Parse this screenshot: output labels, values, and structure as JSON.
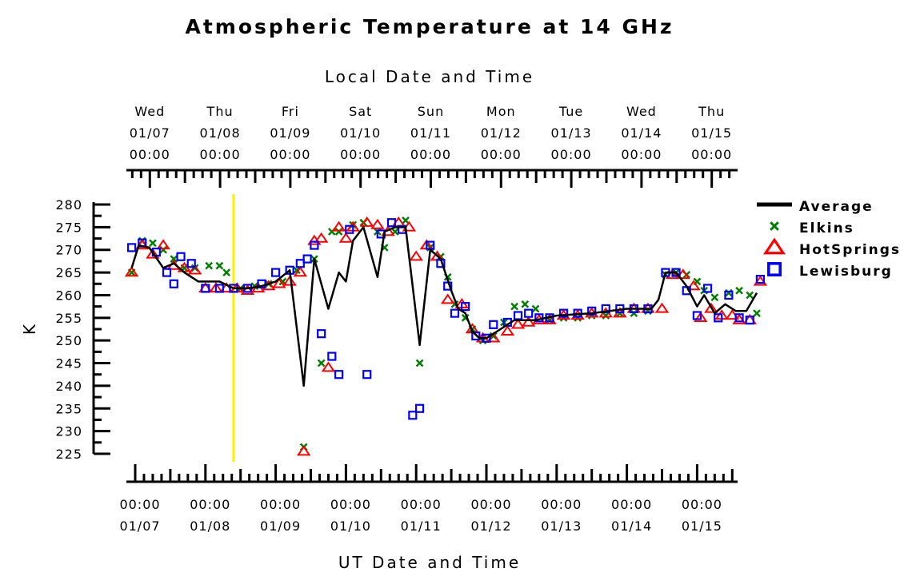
{
  "chart_data": {
    "type": "scatter",
    "title": "Atmospheric Temperature at 14 GHz",
    "top_axis_label": "Local Date and Time",
    "xlabel": "UT Date and Time",
    "ylabel": "K",
    "ylim": [
      225,
      280
    ],
    "yticks": [
      "280",
      "275",
      "270",
      "265",
      "260",
      "255",
      "250",
      "245",
      "240",
      "235",
      "230",
      "225"
    ],
    "top_ticks": [
      {
        "day": "Wed",
        "date": "01/07",
        "time": "00:00"
      },
      {
        "day": "Thu",
        "date": "01/08",
        "time": "00:00"
      },
      {
        "day": "Fri",
        "date": "01/09",
        "time": "00:00"
      },
      {
        "day": "Sat",
        "date": "01/10",
        "time": "00:00"
      },
      {
        "day": "Sun",
        "date": "01/11",
        "time": "00:00"
      },
      {
        "day": "Mon",
        "date": "01/12",
        "time": "00:00"
      },
      {
        "day": "Tue",
        "date": "01/13",
        "time": "00:00"
      },
      {
        "day": "Wed",
        "date": "01/14",
        "time": "00:00"
      },
      {
        "day": "Thu",
        "date": "01/15",
        "time": "00:00"
      }
    ],
    "bottom_ticks": [
      {
        "time": "00:00",
        "date": "01/07"
      },
      {
        "time": "00:00",
        "date": "01/08"
      },
      {
        "time": "00:00",
        "date": "01/09"
      },
      {
        "time": "00:00",
        "date": "01/10"
      },
      {
        "time": "00:00",
        "date": "01/11"
      },
      {
        "time": "00:00",
        "date": "01/12"
      },
      {
        "time": "00:00",
        "date": "01/13"
      },
      {
        "time": "00:00",
        "date": "01/14"
      },
      {
        "time": "00:00",
        "date": "01/15"
      }
    ],
    "x_unit": "days since 01/07 00:00 UT",
    "vline": {
      "x": 1.4,
      "color": "#ffee00"
    },
    "legend_position": "right",
    "series": [
      {
        "name": "Average",
        "marker": "line",
        "color": "#000000",
        "points": [
          [
            -0.05,
            266
          ],
          [
            0.05,
            271
          ],
          [
            0.2,
            270.5
          ],
          [
            0.4,
            266
          ],
          [
            0.55,
            267
          ],
          [
            0.7,
            265
          ],
          [
            0.9,
            263
          ],
          [
            1.2,
            263
          ],
          [
            1.4,
            261.5
          ],
          [
            1.6,
            261.5
          ],
          [
            1.8,
            262
          ],
          [
            2.0,
            263
          ],
          [
            2.2,
            265.5
          ],
          [
            2.4,
            240
          ],
          [
            2.55,
            268
          ],
          [
            2.75,
            257
          ],
          [
            2.9,
            265
          ],
          [
            3.0,
            263
          ],
          [
            3.1,
            272
          ],
          [
            3.25,
            275
          ],
          [
            3.45,
            264
          ],
          [
            3.55,
            274
          ],
          [
            3.7,
            275
          ],
          [
            3.85,
            275
          ],
          [
            4.05,
            249
          ],
          [
            4.2,
            270
          ],
          [
            4.35,
            268
          ],
          [
            4.5,
            261
          ],
          [
            4.6,
            257
          ],
          [
            4.7,
            256
          ],
          [
            4.8,
            252
          ],
          [
            4.9,
            250.5
          ],
          [
            5.0,
            250.5
          ],
          [
            5.2,
            252.5
          ],
          [
            5.4,
            254.5
          ],
          [
            5.7,
            254.5
          ],
          [
            6.0,
            255.5
          ],
          [
            6.5,
            256
          ],
          [
            7.0,
            257
          ],
          [
            7.35,
            257
          ],
          [
            7.45,
            259
          ],
          [
            7.55,
            265
          ],
          [
            7.7,
            265
          ],
          [
            7.85,
            262
          ],
          [
            8.0,
            257.5
          ],
          [
            8.1,
            260
          ],
          [
            8.25,
            256
          ],
          [
            8.4,
            258
          ],
          [
            8.55,
            256.5
          ],
          [
            8.7,
            256.5
          ],
          [
            8.85,
            260.5
          ]
        ]
      },
      {
        "name": "Elkins",
        "marker": "x",
        "color": "#008000",
        "points": [
          [
            -0.05,
            265
          ],
          [
            0.1,
            272
          ],
          [
            0.25,
            271.5
          ],
          [
            0.4,
            270
          ],
          [
            0.55,
            268
          ],
          [
            0.7,
            266
          ],
          [
            0.85,
            266
          ],
          [
            1.05,
            266.5
          ],
          [
            1.2,
            266.5
          ],
          [
            1.3,
            265
          ],
          [
            1.5,
            261.5
          ],
          [
            1.7,
            262
          ],
          [
            1.9,
            262.5
          ],
          [
            2.1,
            263
          ],
          [
            2.3,
            265.5
          ],
          [
            2.4,
            226.5
          ],
          [
            2.55,
            268
          ],
          [
            2.65,
            245
          ],
          [
            2.8,
            274
          ],
          [
            2.9,
            274
          ],
          [
            3.1,
            275.5
          ],
          [
            3.25,
            276
          ],
          [
            3.45,
            274
          ],
          [
            3.55,
            270.5
          ],
          [
            3.7,
            274
          ],
          [
            3.85,
            276.5
          ],
          [
            4.05,
            245
          ],
          [
            4.2,
            270.5
          ],
          [
            4.35,
            268.5
          ],
          [
            4.45,
            264
          ],
          [
            4.55,
            258
          ],
          [
            4.7,
            255
          ],
          [
            4.8,
            252.5
          ],
          [
            4.95,
            250
          ],
          [
            5.1,
            251
          ],
          [
            5.25,
            254
          ],
          [
            5.4,
            257.5
          ],
          [
            5.55,
            258
          ],
          [
            5.7,
            257
          ],
          [
            5.9,
            254.5
          ],
          [
            6.1,
            255
          ],
          [
            6.3,
            255
          ],
          [
            6.5,
            255.5
          ],
          [
            6.7,
            255.5
          ],
          [
            6.9,
            256
          ],
          [
            7.1,
            256
          ],
          [
            7.3,
            256.5
          ],
          [
            7.55,
            264.5
          ],
          [
            7.7,
            265
          ],
          [
            7.85,
            264.5
          ],
          [
            8.0,
            263
          ],
          [
            8.1,
            261
          ],
          [
            8.25,
            259.5
          ],
          [
            8.45,
            260.5
          ],
          [
            8.6,
            261
          ],
          [
            8.75,
            260
          ],
          [
            8.85,
            256
          ]
        ]
      },
      {
        "name": "HotSprings",
        "marker": "triangle",
        "color": "#ff0000",
        "points": [
          [
            -0.05,
            265
          ],
          [
            0.1,
            271
          ],
          [
            0.25,
            269
          ],
          [
            0.4,
            271
          ],
          [
            0.55,
            266.5
          ],
          [
            0.7,
            266
          ],
          [
            0.85,
            265.5
          ],
          [
            1.0,
            261.5
          ],
          [
            1.15,
            261.5
          ],
          [
            1.3,
            261.5
          ],
          [
            1.45,
            261.5
          ],
          [
            1.6,
            261
          ],
          [
            1.75,
            261.5
          ],
          [
            1.9,
            262
          ],
          [
            2.05,
            262.5
          ],
          [
            2.2,
            263
          ],
          [
            2.35,
            265
          ],
          [
            2.4,
            225.5
          ],
          [
            2.55,
            272
          ],
          [
            2.65,
            272.5
          ],
          [
            2.75,
            244
          ],
          [
            2.9,
            275
          ],
          [
            3.0,
            272.5
          ],
          [
            3.1,
            275
          ],
          [
            3.3,
            276
          ],
          [
            3.45,
            275.5
          ],
          [
            3.6,
            274
          ],
          [
            3.75,
            276
          ],
          [
            3.9,
            275
          ],
          [
            4.0,
            268.5
          ],
          [
            4.15,
            271
          ],
          [
            4.3,
            268.5
          ],
          [
            4.45,
            259
          ],
          [
            4.65,
            258
          ],
          [
            4.8,
            252.5
          ],
          [
            4.95,
            250.5
          ],
          [
            5.1,
            250.5
          ],
          [
            5.3,
            252
          ],
          [
            5.45,
            253.5
          ],
          [
            5.6,
            254
          ],
          [
            5.75,
            254.5
          ],
          [
            5.9,
            254.5
          ],
          [
            6.1,
            255.5
          ],
          [
            6.3,
            255.5
          ],
          [
            6.5,
            256
          ],
          [
            6.7,
            256
          ],
          [
            6.9,
            256
          ],
          [
            7.1,
            257
          ],
          [
            7.3,
            257
          ],
          [
            7.5,
            257
          ],
          [
            7.65,
            264.5
          ],
          [
            7.8,
            264.5
          ],
          [
            7.95,
            262
          ],
          [
            8.05,
            255
          ],
          [
            8.2,
            257
          ],
          [
            8.35,
            255.5
          ],
          [
            8.5,
            255.5
          ],
          [
            8.6,
            254.5
          ],
          [
            8.75,
            254.5
          ],
          [
            8.9,
            263
          ]
        ]
      },
      {
        "name": "Lewisburg",
        "marker": "square",
        "color": "#0000ff",
        "points": [
          [
            -0.05,
            270.5
          ],
          [
            0.1,
            271.5
          ],
          [
            0.3,
            269.5
          ],
          [
            0.45,
            265
          ],
          [
            0.55,
            262.5
          ],
          [
            0.65,
            268.5
          ],
          [
            0.8,
            267
          ],
          [
            1.0,
            261.5
          ],
          [
            1.2,
            261.5
          ],
          [
            1.4,
            261.5
          ],
          [
            1.6,
            261.5
          ],
          [
            1.8,
            262.5
          ],
          [
            2.0,
            265
          ],
          [
            2.2,
            265.5
          ],
          [
            2.35,
            267
          ],
          [
            2.45,
            268
          ],
          [
            2.55,
            271
          ],
          [
            2.65,
            251.5
          ],
          [
            2.8,
            246.5
          ],
          [
            2.9,
            242.5
          ],
          [
            3.05,
            274.5
          ],
          [
            3.3,
            242.5
          ],
          [
            3.5,
            273.5
          ],
          [
            3.65,
            276
          ],
          [
            3.8,
            274.5
          ],
          [
            3.95,
            233.5
          ],
          [
            4.05,
            235
          ],
          [
            4.2,
            271
          ],
          [
            4.35,
            267
          ],
          [
            4.45,
            262
          ],
          [
            4.55,
            256
          ],
          [
            4.7,
            257.5
          ],
          [
            4.85,
            251
          ],
          [
            5.0,
            250.5
          ],
          [
            5.1,
            253.5
          ],
          [
            5.3,
            254
          ],
          [
            5.45,
            255.5
          ],
          [
            5.6,
            256
          ],
          [
            5.75,
            255
          ],
          [
            5.9,
            255
          ],
          [
            6.1,
            256
          ],
          [
            6.3,
            256
          ],
          [
            6.5,
            256.5
          ],
          [
            6.7,
            257
          ],
          [
            6.9,
            257
          ],
          [
            7.1,
            257
          ],
          [
            7.3,
            257
          ],
          [
            7.55,
            265
          ],
          [
            7.7,
            265
          ],
          [
            7.85,
            261
          ],
          [
            8.0,
            255.5
          ],
          [
            8.15,
            261.5
          ],
          [
            8.3,
            255
          ],
          [
            8.45,
            260
          ],
          [
            8.6,
            255
          ],
          [
            8.75,
            254.5
          ],
          [
            8.9,
            263.5
          ]
        ]
      }
    ]
  }
}
